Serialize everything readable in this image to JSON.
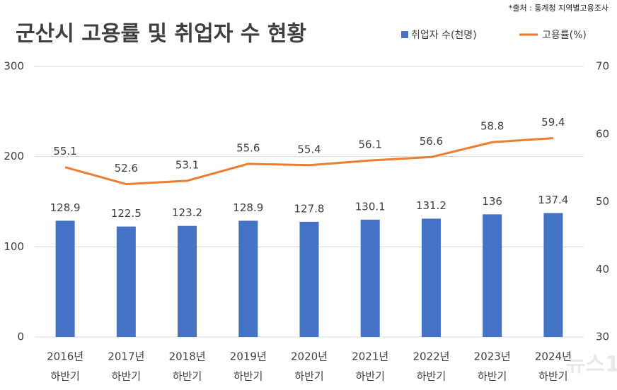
{
  "chart_data": {
    "type": "bar-line",
    "title": "군산시 고용률 및 취업자 수 현황",
    "source": "*출처 : 통계청 지역별고용조사",
    "watermark": "뉴스1",
    "categories": [
      [
        "2016년",
        "하반기"
      ],
      [
        "2017년",
        "하반기"
      ],
      [
        "2018년",
        "하반기"
      ],
      [
        "2019년",
        "하반기"
      ],
      [
        "2020년",
        "하반기"
      ],
      [
        "2021년",
        "하반기"
      ],
      [
        "2022년",
        "하반기"
      ],
      [
        "2023년",
        "하반기"
      ],
      [
        "2024년",
        "하반기"
      ]
    ],
    "series": [
      {
        "name": "취업자 수(천명)",
        "type": "bar",
        "color": "#4472c4",
        "values": [
          128.9,
          122.5,
          123.2,
          128.9,
          127.8,
          130.1,
          131.2,
          136,
          137.4
        ]
      },
      {
        "name": "고용률(%)",
        "type": "line",
        "axis": "y2",
        "color": "#ed7d31",
        "values": [
          55.1,
          52.6,
          53.1,
          55.6,
          55.4,
          56.1,
          56.6,
          58.8,
          59.4
        ]
      }
    ],
    "ylim": [
      0,
      300
    ],
    "yticks": [
      0,
      100,
      200,
      300
    ],
    "y2lim": [
      30,
      70
    ],
    "y2ticks": [
      30,
      40,
      50,
      60,
      70
    ],
    "grid": true,
    "legend": "top-right"
  }
}
